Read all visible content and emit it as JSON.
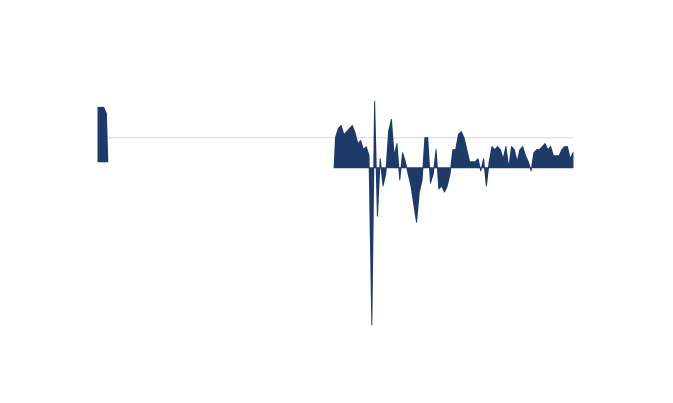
{
  "chart_data": {
    "type": "area",
    "title": "",
    "xlabel": "",
    "ylabel": "",
    "grid": false,
    "legend": "none",
    "colors": {
      "series": "#1f3a68",
      "reference_line": "#d9d9d9"
    },
    "reference_line_y": 0,
    "ylim": [
      -2.6,
      1.75
    ],
    "series": [
      {
        "x": [
          0.0,
          0.2,
          0.3,
          0.35
        ],
        "y": [
          1.0,
          1.0,
          0.9,
          0.1
        ],
        "baseline": 0.1
      },
      {
        "x": [
          8.45,
          8.5,
          8.6,
          8.7,
          8.8,
          8.9,
          9.0,
          9.1,
          9.2,
          9.3,
          9.4,
          9.5,
          9.6,
          9.7,
          9.8,
          9.9,
          10.0,
          10.1,
          10.2,
          10.3,
          10.4,
          10.5,
          10.6,
          10.7,
          10.8,
          10.9,
          11.0,
          11.1,
          11.2,
          11.3,
          11.4,
          11.5,
          11.6,
          11.7,
          11.8,
          11.9,
          12.0,
          12.1,
          12.2,
          12.3,
          12.4,
          12.5,
          12.6,
          12.7,
          12.8,
          12.9,
          13.0,
          13.1,
          13.2,
          13.3,
          13.4,
          13.5,
          13.6,
          13.7,
          13.8,
          13.9,
          14.0,
          14.1,
          14.2,
          14.3,
          14.4,
          14.5,
          14.6,
          14.7,
          14.8,
          14.9,
          15.0,
          15.1,
          15.2,
          15.3,
          15.4,
          15.5,
          15.6,
          15.7,
          15.8,
          15.9,
          16.0,
          16.1,
          16.2,
          16.3,
          16.4,
          16.5,
          16.6,
          16.7,
          16.8,
          16.9,
          17.0
        ],
        "y": [
          0.0,
          0.5,
          0.65,
          0.7,
          0.55,
          0.6,
          0.65,
          0.7,
          0.58,
          0.4,
          0.45,
          0.3,
          0.35,
          0.2,
          -2.6,
          1.1,
          -0.8,
          0.15,
          -0.3,
          -0.1,
          0.6,
          0.8,
          0.2,
          0.4,
          -0.2,
          0.25,
          0.1,
          -0.1,
          -0.3,
          -0.6,
          -0.9,
          -0.4,
          -0.2,
          0.5,
          0.5,
          -0.25,
          -0.1,
          0.3,
          -0.35,
          -0.3,
          -0.4,
          -0.3,
          -0.1,
          0.3,
          0.3,
          0.55,
          0.6,
          0.5,
          0.3,
          0.1,
          0.1,
          0.1,
          0.15,
          -0.05,
          0.15,
          -0.3,
          0.1,
          0.35,
          0.3,
          0.35,
          0.3,
          0.15,
          0.35,
          0.0,
          0.35,
          0.3,
          0.1,
          0.3,
          0.35,
          0.2,
          0.1,
          -0.05,
          0.25,
          0.3,
          0.3,
          0.35,
          0.4,
          0.3,
          0.35,
          0.2,
          0.2,
          0.2,
          0.3,
          0.35,
          0.35,
          0.15,
          0.25
        ],
        "baseline": 0
      }
    ]
  }
}
